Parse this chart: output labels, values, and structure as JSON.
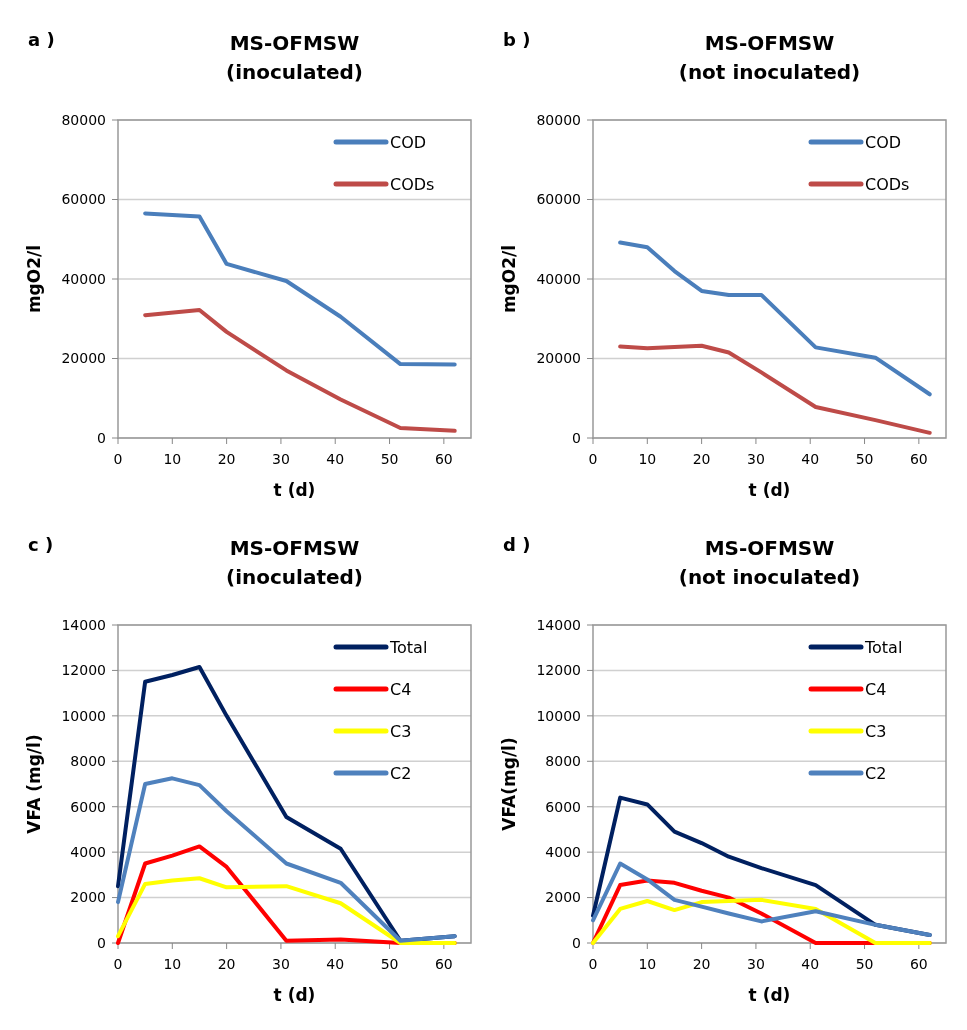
{
  "chart_data": [
    {
      "type": "line",
      "title": "MS-OFMSW\n(inoculated)",
      "xlabel": "t (d)",
      "ylabel": "mgO2/l",
      "annotations": [
        "a )"
      ],
      "xlim": [
        0,
        65
      ],
      "xticks": [
        0,
        10,
        20,
        30,
        40,
        50,
        60
      ],
      "ylim": [
        0,
        80000
      ],
      "yticks": [
        0,
        20000,
        40000,
        60000,
        80000
      ],
      "grid": "y",
      "legend": "top right",
      "marker": "none",
      "line_style": "solid",
      "series": [
        {
          "name": "COD",
          "color": "#4a7ebb",
          "x": [
            5,
            15,
            20,
            31,
            41,
            52,
            62
          ],
          "values": [
            56500,
            55700,
            43800,
            39500,
            30500,
            18600,
            18500
          ]
        },
        {
          "name": "CODs",
          "color": "#be4b48",
          "x": [
            5,
            15,
            20,
            31,
            41,
            52,
            62
          ],
          "values": [
            30900,
            32200,
            26700,
            17000,
            9700,
            2500,
            1800
          ]
        }
      ]
    },
    {
      "type": "line",
      "title": "MS-OFMSW\n(not inoculated)",
      "xlabel": "t (d)",
      "ylabel": "mgO2/l",
      "annotations": [
        "b )"
      ],
      "xlim": [
        0,
        65
      ],
      "xticks": [
        0,
        10,
        20,
        30,
        40,
        50,
        60
      ],
      "ylim": [
        0,
        80000
      ],
      "yticks": [
        0,
        20000,
        40000,
        60000,
        80000
      ],
      "grid": "y",
      "legend": "top right",
      "marker": "none",
      "line_style": "solid",
      "series": [
        {
          "name": "COD",
          "color": "#4a7ebb",
          "x": [
            5,
            10,
            15,
            20,
            25,
            31,
            41,
            52,
            62
          ],
          "values": [
            49200,
            48000,
            42000,
            37000,
            36000,
            36000,
            22800,
            20200,
            11000
          ]
        },
        {
          "name": "CODs",
          "color": "#be4b48",
          "x": [
            5,
            10,
            20,
            25,
            31,
            41,
            52,
            62
          ],
          "values": [
            23000,
            22600,
            23200,
            21500,
            16500,
            7800,
            4500,
            1300
          ]
        }
      ]
    },
    {
      "type": "line",
      "title": "MS-OFMSW\n(inoculated)",
      "xlabel": "t (d)",
      "ylabel": "VFA (mg/l)",
      "annotations": [
        "c )"
      ],
      "xlim": [
        0,
        65
      ],
      "xticks": [
        0,
        10,
        20,
        30,
        40,
        50,
        60
      ],
      "ylim": [
        0,
        14000
      ],
      "yticks": [
        0,
        2000,
        4000,
        6000,
        8000,
        10000,
        12000,
        14000
      ],
      "grid": "y",
      "legend": "top right",
      "marker": "none",
      "line_style": "solid",
      "series": [
        {
          "name": "Total",
          "color": "#002060",
          "x": [
            0,
            5,
            10,
            15,
            20,
            31,
            41,
            52,
            62
          ],
          "values": [
            2500,
            11500,
            11800,
            12150,
            10000,
            5550,
            4150,
            100,
            300
          ]
        },
        {
          "name": "C4",
          "color": "#ff0000",
          "x": [
            0,
            5,
            10,
            15,
            20,
            31,
            41,
            52,
            62
          ],
          "values": [
            0,
            3500,
            3850,
            4250,
            3350,
            100,
            150,
            0,
            0
          ]
        },
        {
          "name": "C3",
          "color": "#ffff00",
          "x": [
            0,
            5,
            10,
            15,
            20,
            31,
            41,
            52,
            62
          ],
          "values": [
            300,
            2600,
            2750,
            2850,
            2450,
            2500,
            1750,
            0,
            0
          ]
        },
        {
          "name": "C2",
          "color": "#4f81bd",
          "x": [
            0,
            5,
            10,
            15,
            20,
            31,
            41,
            52,
            62
          ],
          "values": [
            1800,
            7000,
            7250,
            6950,
            5800,
            3500,
            2650,
            100,
            300
          ]
        }
      ]
    },
    {
      "type": "line",
      "title": "MS-OFMSW\n(not inoculated)",
      "xlabel": "t (d)",
      "ylabel": "VFA(mg/l)",
      "annotations": [
        "d )"
      ],
      "xlim": [
        0,
        65
      ],
      "xticks": [
        0,
        10,
        20,
        30,
        40,
        50,
        60
      ],
      "ylim": [
        0,
        14000
      ],
      "yticks": [
        0,
        2000,
        4000,
        6000,
        8000,
        10000,
        12000,
        14000
      ],
      "grid": "y",
      "legend": "top right",
      "marker": "none",
      "line_style": "solid",
      "series": [
        {
          "name": "Total",
          "color": "#002060",
          "x": [
            0,
            5,
            10,
            15,
            20,
            25,
            31,
            41,
            52,
            62
          ],
          "values": [
            1200,
            6400,
            6100,
            4900,
            4400,
            3800,
            3300,
            2550,
            800,
            350
          ]
        },
        {
          "name": "C4",
          "color": "#ff0000",
          "x": [
            0,
            5,
            10,
            15,
            20,
            25,
            31,
            41,
            52,
            62
          ],
          "values": [
            0,
            2550,
            2750,
            2650,
            2300,
            2000,
            1300,
            0,
            0,
            0
          ]
        },
        {
          "name": "C3",
          "color": "#ffff00",
          "x": [
            0,
            5,
            10,
            15,
            20,
            25,
            31,
            41,
            52,
            62
          ],
          "values": [
            0,
            1500,
            1850,
            1450,
            1800,
            1850,
            1900,
            1500,
            0,
            0
          ]
        },
        {
          "name": "C2",
          "color": "#4f81bd",
          "x": [
            0,
            5,
            10,
            15,
            20,
            25,
            31,
            41,
            52,
            62
          ],
          "values": [
            1000,
            3500,
            2800,
            1900,
            1600,
            1300,
            950,
            1400,
            800,
            350
          ]
        }
      ]
    }
  ]
}
